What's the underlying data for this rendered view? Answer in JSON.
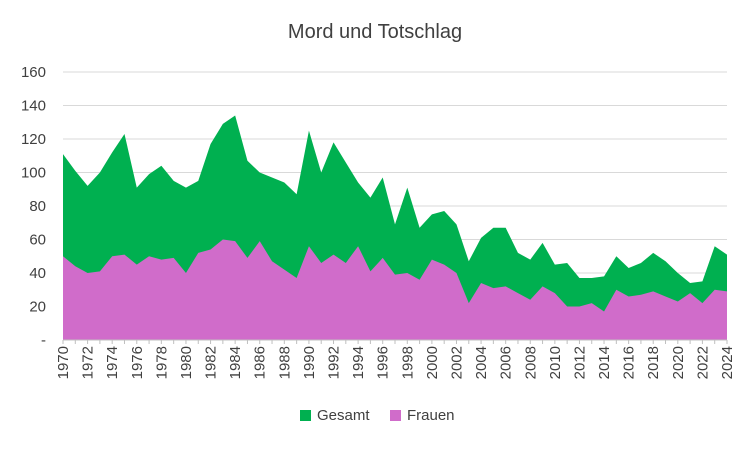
{
  "chart_data": {
    "type": "area",
    "title": "Mord und Totschlag",
    "x": [
      1970,
      1971,
      1972,
      1973,
      1974,
      1975,
      1976,
      1977,
      1978,
      1979,
      1980,
      1981,
      1982,
      1983,
      1984,
      1985,
      1986,
      1987,
      1988,
      1989,
      1990,
      1991,
      1992,
      1993,
      1994,
      1995,
      1996,
      1997,
      1998,
      1999,
      2000,
      2001,
      2002,
      2003,
      2004,
      2005,
      2006,
      2007,
      2008,
      2009,
      2010,
      2011,
      2012,
      2013,
      2014,
      2015,
      2016,
      2017,
      2018,
      2019,
      2020,
      2021,
      2022,
      2023,
      2024
    ],
    "x_tick_labels": [
      "1970",
      "1972",
      "1974",
      "1976",
      "1978",
      "1980",
      "1982",
      "1984",
      "1986",
      "1988",
      "1990",
      "1992",
      "1994",
      "1996",
      "1998",
      "2000",
      "2002",
      "2004",
      "2006",
      "2008",
      "2010",
      "2012",
      "2014",
      "2016",
      "2018",
      "2020",
      "2022",
      "2024"
    ],
    "y_tick_labels": [
      "-",
      "20",
      "40",
      "60",
      "80",
      "100",
      "120",
      "140",
      "160"
    ],
    "ylim": [
      0,
      160
    ],
    "grid": true,
    "legend_position": "bottom",
    "series": [
      {
        "name": "Gesamt",
        "color": "#00B050",
        "values": [
          111,
          101,
          92,
          100,
          112,
          123,
          91,
          99,
          104,
          95,
          91,
          95,
          117,
          129,
          134,
          107,
          100,
          97,
          94,
          87,
          125,
          100,
          118,
          106,
          94,
          85,
          97,
          69,
          91,
          67,
          75,
          77,
          69,
          47,
          61,
          67,
          67,
          52,
          48,
          58,
          45,
          46,
          37,
          37,
          38,
          50,
          43,
          46,
          52,
          47,
          40,
          34,
          35,
          56,
          51
        ]
      },
      {
        "name": "Frauen",
        "color": "#D06CCA",
        "values": [
          50,
          44,
          40,
          41,
          50,
          51,
          45,
          50,
          48,
          49,
          40,
          52,
          54,
          60,
          59,
          49,
          59,
          47,
          42,
          37,
          56,
          46,
          51,
          46,
          56,
          41,
          49,
          39,
          40,
          36,
          48,
          45,
          40,
          22,
          34,
          31,
          32,
          28,
          24,
          32,
          28,
          20,
          20,
          22,
          17,
          30,
          26,
          27,
          29,
          26,
          23,
          28,
          22,
          30,
          29
        ]
      }
    ]
  }
}
